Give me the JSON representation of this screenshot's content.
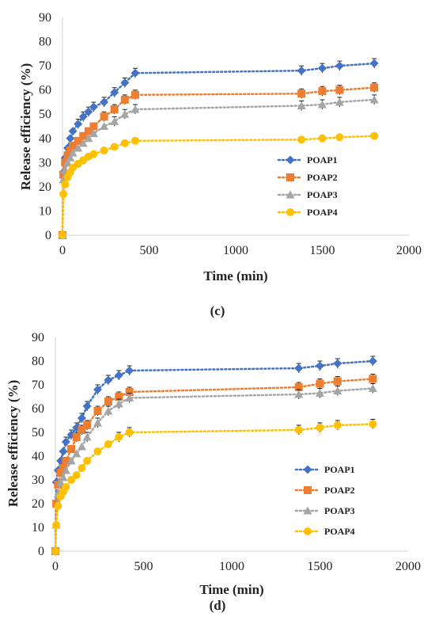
{
  "chart_data": [
    {
      "type": "line",
      "panel_label": "(c)",
      "xlabel": "Time (min)",
      "ylabel": "Release efficiency (%)",
      "xlim": [
        0,
        2000
      ],
      "ylim": [
        0,
        90
      ],
      "xticks": [
        "0",
        "500",
        "1000",
        "1500",
        "2000"
      ],
      "yticks": [
        "0",
        "10",
        "20",
        "30",
        "40",
        "50",
        "60",
        "70",
        "80",
        "90"
      ],
      "grid": false,
      "legend_position": "center-right",
      "x": [
        0,
        5,
        15,
        30,
        45,
        60,
        90,
        120,
        150,
        180,
        240,
        300,
        360,
        420,
        1380,
        1500,
        1600,
        1800
      ],
      "series": [
        {
          "name": "POAP1",
          "color": "#4472C4",
          "marker": "diamond",
          "values": [
            0,
            26,
            32,
            36,
            40,
            43,
            46,
            49,
            51,
            53,
            55,
            59,
            63,
            67,
            68,
            69,
            70,
            71
          ]
        },
        {
          "name": "POAP2",
          "color": "#ED7D31",
          "marker": "square",
          "values": [
            0,
            25,
            30,
            33,
            35,
            37,
            39,
            41,
            43,
            45,
            49,
            52,
            56,
            58,
            58.5,
            59.5,
            60,
            61
          ]
        },
        {
          "name": "POAP3",
          "color": "#A5A5A5",
          "marker": "triangle",
          "values": [
            0,
            23,
            27,
            30,
            32,
            34,
            36,
            38,
            40,
            42,
            45,
            47,
            50,
            52,
            53.5,
            54,
            55,
            56
          ]
        },
        {
          "name": "POAP4",
          "color": "#FFC000",
          "marker": "circle",
          "values": [
            0,
            17,
            21,
            24,
            26,
            28,
            29.5,
            31,
            32.5,
            33.5,
            35,
            36.5,
            38,
            39,
            39.5,
            40,
            40.5,
            41
          ]
        }
      ]
    },
    {
      "type": "line",
      "panel_label": "(d)",
      "xlabel": "Time (min)",
      "ylabel": "Release efficiency (%)",
      "xlim": [
        0,
        2000
      ],
      "ylim": [
        0,
        90
      ],
      "xticks": [
        "0",
        "500",
        "1000",
        "1500",
        "2000"
      ],
      "yticks": [
        "0",
        "10",
        "20",
        "30",
        "40",
        "50",
        "60",
        "70",
        "80",
        "90"
      ],
      "grid": false,
      "legend_position": "center-right",
      "x": [
        0,
        5,
        15,
        30,
        45,
        60,
        90,
        120,
        150,
        180,
        240,
        300,
        360,
        420,
        1380,
        1500,
        1600,
        1800
      ],
      "series": [
        {
          "name": "POAP1",
          "color": "#4472C4",
          "marker": "diamond",
          "values": [
            0,
            29,
            34,
            38,
            42,
            46,
            49,
            52,
            56,
            61,
            68,
            72,
            74,
            76,
            77,
            78,
            79,
            80
          ]
        },
        {
          "name": "POAP2",
          "color": "#ED7D31",
          "marker": "square",
          "values": [
            0,
            20,
            28,
            33,
            35,
            38,
            43,
            48,
            51,
            53,
            59,
            63,
            65,
            67,
            69,
            70.5,
            71.5,
            72.5
          ]
        },
        {
          "name": "POAP3",
          "color": "#A5A5A5",
          "marker": "triangle",
          "values": [
            0,
            11,
            24,
            29,
            31,
            34,
            38,
            41,
            44,
            48,
            54,
            59,
            62,
            64.5,
            66,
            66.5,
            67.5,
            68.5
          ]
        },
        {
          "name": "POAP4",
          "color": "#FFC000",
          "marker": "circle",
          "values": [
            0,
            11,
            19,
            23,
            25,
            27,
            30,
            32,
            35,
            38,
            42,
            45,
            48,
            50,
            51,
            52,
            53,
            53.5
          ]
        }
      ]
    }
  ]
}
